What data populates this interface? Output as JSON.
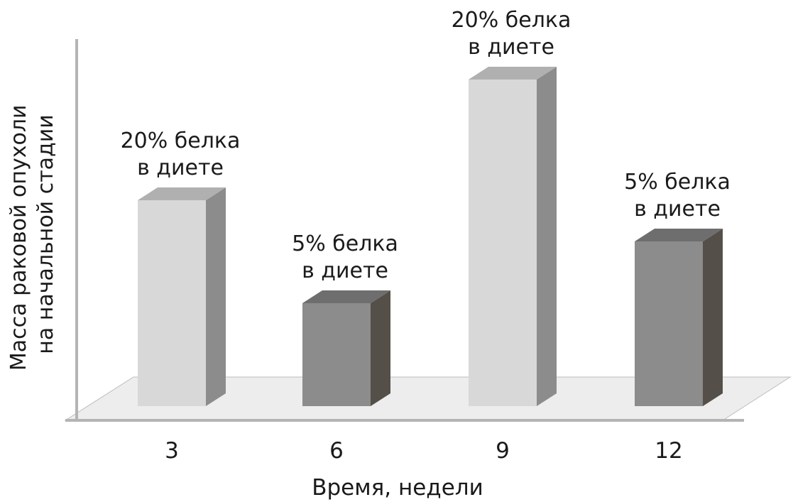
{
  "chart_data": {
    "type": "bar",
    "style": "3d",
    "categories": [
      "3",
      "6",
      "9",
      "12"
    ],
    "values": [
      290,
      145,
      460,
      232
    ],
    "bar_labels": [
      [
        "20% белка",
        "в диете"
      ],
      [
        "5% белка",
        "в диете"
      ],
      [
        "20% белка",
        "в диете"
      ],
      [
        "5% белка",
        "в диете"
      ]
    ],
    "bar_colors": [
      "light",
      "dark",
      "light",
      "dark"
    ],
    "xlabel": "Время, недели",
    "ylabel": [
      "Масса раковой опухоли",
      "на начальной стадии"
    ],
    "ylim": [
      0,
      520
    ],
    "grid": false,
    "y_ticks_shown": false,
    "colors": {
      "light_front": "#d8d8d8",
      "light_side": "#8c8c8c",
      "light_top": "#b0b0b0",
      "dark_front": "#8c8c8c",
      "dark_side": "#545049",
      "dark_top": "#6e6e6e",
      "floor": "#ededed",
      "axis": "#b4b4b4",
      "text": "#1a1a1a"
    }
  }
}
